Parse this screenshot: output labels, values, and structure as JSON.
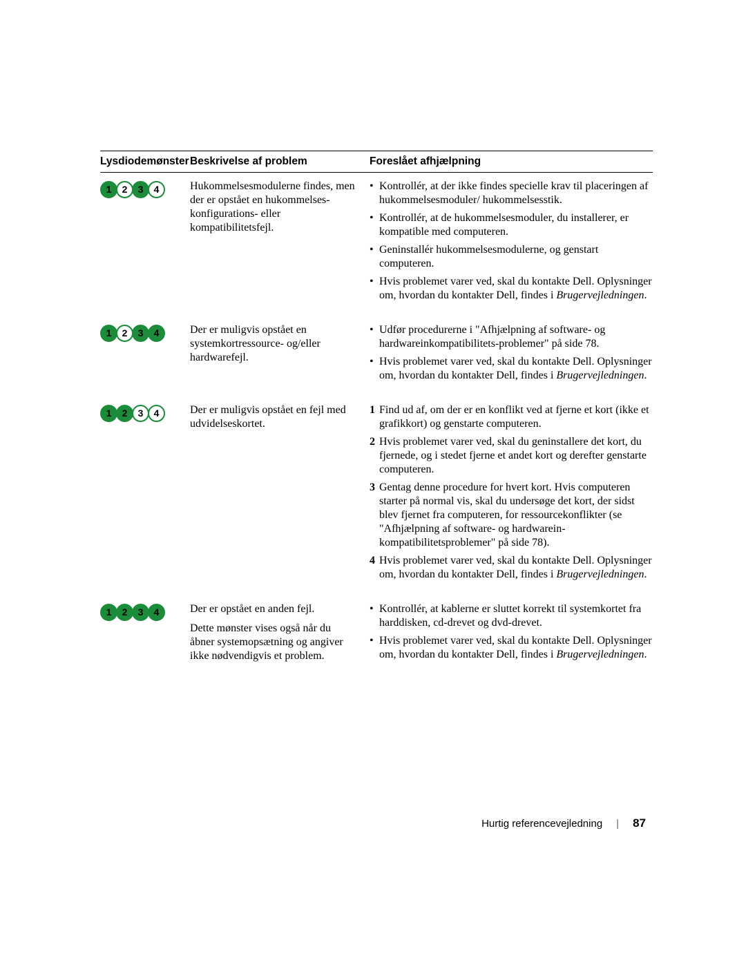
{
  "headers": {
    "pattern": "Lysdiodemønster",
    "description": "Beskrivelse af problem",
    "fix": "Foreslået afhjælpning"
  },
  "led_colors": {
    "on_fill": "#1a8c3a",
    "border": "#1a8c3a",
    "off_fill": "#ffffff",
    "text": "#000000"
  },
  "rows": [
    {
      "leds": [
        true,
        false,
        true,
        false
      ],
      "description": [
        "Hukommelsesmodulerne findes, men der er opstået en hukommelses-konfigurations- eller kompatibilitetsfejl."
      ],
      "fixes": [
        {
          "type": "bullet",
          "text": "Kontrollér, at der ikke findes specielle krav til placeringen af hukommelsesmoduler/ hukommelsesstik."
        },
        {
          "type": "bullet",
          "text": "Kontrollér, at de hukommelsesmoduler, du installerer, er kompatible med computeren."
        },
        {
          "type": "bullet",
          "text": "Geninstallér hukommelsesmodulerne, og genstart computeren."
        },
        {
          "type": "bullet",
          "text": "Hvis problemet varer ved, skal du kontakte Dell. Oplysninger om, hvordan du kontakter Dell, findes i ",
          "italic_suffix": "Brugervejledningen",
          "after": "."
        }
      ]
    },
    {
      "leds": [
        true,
        false,
        true,
        true
      ],
      "description": [
        "Der er muligvis opstået en systemkortressource- og/eller hardwarefejl."
      ],
      "fixes": [
        {
          "type": "bullet",
          "text": "Udfør procedurerne i \"Afhjælpning af software- og hardwareinkompatibilitets-problemer\" på side 78."
        },
        {
          "type": "bullet",
          "text": "Hvis problemet varer ved, skal du kontakte Dell. Oplysninger om, hvordan du kontakter Dell, findes i ",
          "italic_suffix": "Brugervejledningen",
          "after": "."
        }
      ]
    },
    {
      "leds": [
        true,
        true,
        false,
        false
      ],
      "description": [
        "Der er muligvis opstået en fejl med udvidelseskortet."
      ],
      "fixes": [
        {
          "type": "num",
          "n": "1",
          "text": "Find ud af, om der er en konflikt ved at fjerne et kort (ikke et grafikkort) og genstarte computeren."
        },
        {
          "type": "num",
          "n": "2",
          "text": "Hvis problemet varer ved, skal du geninstallere det kort, du fjernede, og i stedet fjerne et andet kort og derefter genstarte computeren."
        },
        {
          "type": "num",
          "n": "3",
          "text": "Gentag denne procedure for hvert kort. Hvis computeren starter på normal vis, skal du undersøge det kort, der sidst blev fjernet fra computeren, for ressourcekonflikter (se \"Afhjælpning af software- og hardwarein-kompatibilitetsproblemer\" på side 78)."
        },
        {
          "type": "num",
          "n": "4",
          "text": "Hvis problemet varer ved, skal du kontakte Dell. Oplysninger om, hvordan du kontakter Dell, findes i ",
          "italic_suffix": "Brugervejledningen",
          "after": "."
        }
      ]
    },
    {
      "leds": [
        true,
        true,
        true,
        true
      ],
      "description": [
        "Der er opstået en anden fejl.",
        "Dette mønster vises også når du åbner systemopsætning og angiver ikke nødvendigvis et problem."
      ],
      "fixes": [
        {
          "type": "bullet",
          "text": "Kontrollér, at kablerne er sluttet korrekt til systemkortet fra harddisken, cd-drevet og dvd-drevet."
        },
        {
          "type": "bullet",
          "text": "Hvis problemet varer ved, skal du kontakte Dell. Oplysninger om, hvordan du kontakter Dell, findes i ",
          "italic_suffix": "Brugervejledningen",
          "after": "."
        }
      ]
    }
  ],
  "footer": {
    "title": "Hurtig referencevejledning",
    "page": "87"
  }
}
